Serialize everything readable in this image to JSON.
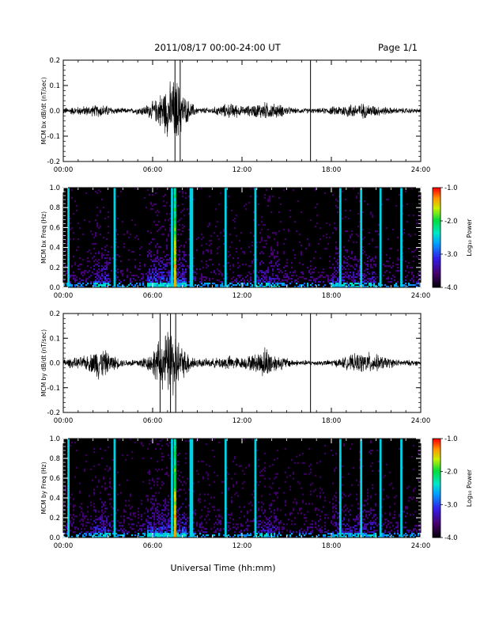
{
  "header": {
    "title": "2011/08/17  00:00-24:00 UT",
    "page": "Page 1/1"
  },
  "footer": {
    "xlabel": "Universal Time (hh:mm)"
  },
  "chart_data": [
    {
      "type": "line",
      "ylabel": "MCM bx dB/dt (nT/sec)",
      "xlim": [
        0,
        24
      ],
      "ylim": [
        -0.2,
        0.2
      ],
      "x_ticks": [
        "00:00",
        "06:00",
        "12:00",
        "18:00",
        "24:00"
      ],
      "y_ticks": [
        "-0.2",
        "-0.1",
        "0.0",
        "0.1",
        "0.2"
      ],
      "spikes_hours": [
        7.5,
        7.85,
        16.6
      ],
      "activity_envelope": [
        [
          0.0,
          0.015
        ],
        [
          1.0,
          0.02
        ],
        [
          2.0,
          0.025
        ],
        [
          2.6,
          0.03
        ],
        [
          3.5,
          0.015
        ],
        [
          4.5,
          0.01
        ],
        [
          5.5,
          0.025
        ],
        [
          6.2,
          0.05
        ],
        [
          6.6,
          0.09
        ],
        [
          7.2,
          0.13
        ],
        [
          7.6,
          0.15
        ],
        [
          8.2,
          0.06
        ],
        [
          9.0,
          0.015
        ],
        [
          10.0,
          0.015
        ],
        [
          10.8,
          0.03
        ],
        [
          11.5,
          0.035
        ],
        [
          12.0,
          0.02
        ],
        [
          12.5,
          0.025
        ],
        [
          13.5,
          0.04
        ],
        [
          14.5,
          0.03
        ],
        [
          15.5,
          0.012
        ],
        [
          16.5,
          0.012
        ],
        [
          17.0,
          0.01
        ],
        [
          18.0,
          0.018
        ],
        [
          19.0,
          0.03
        ],
        [
          20.0,
          0.035
        ],
        [
          21.0,
          0.025
        ],
        [
          22.0,
          0.015
        ],
        [
          23.0,
          0.012
        ],
        [
          24.0,
          0.01
        ]
      ]
    },
    {
      "type": "heatmap",
      "ylabel": "MCM bx Freq (Hz)",
      "xlim": [
        0,
        24
      ],
      "ylim": [
        0,
        1.0
      ],
      "x_ticks": [
        "00:00",
        "06:00",
        "12:00",
        "18:00",
        "24:00"
      ],
      "y_ticks": [
        "0.0",
        "0.2",
        "0.4",
        "0.6",
        "0.8",
        "1.0"
      ],
      "colorbar": {
        "label": "Log₁₀ Power",
        "range": [
          -4.0,
          -1.0
        ],
        "ticks": [
          "-1.0",
          "-2.0",
          "-3.0",
          "-4.0"
        ]
      },
      "stripes_hours": [
        0.35,
        3.45,
        7.3,
        8.55,
        8.65,
        10.9,
        12.9,
        18.6,
        20.0,
        21.3,
        22.7
      ],
      "strong_stripe_hour": 7.5
    },
    {
      "type": "line",
      "ylabel": "MCM by dB/dt (nT/sec)",
      "xlim": [
        0,
        24
      ],
      "ylim": [
        -0.2,
        0.2
      ],
      "x_ticks": [
        "00:00",
        "06:00",
        "12:00",
        "18:00",
        "24:00"
      ],
      "y_ticks": [
        "-0.2",
        "-0.1",
        "0.0",
        "0.1",
        "0.2"
      ],
      "spikes_hours": [
        6.5,
        7.2,
        7.55,
        16.6
      ],
      "activity_envelope": [
        [
          0.0,
          0.02
        ],
        [
          1.0,
          0.025
        ],
        [
          1.8,
          0.04
        ],
        [
          2.4,
          0.08
        ],
        [
          3.2,
          0.04
        ],
        [
          4.0,
          0.015
        ],
        [
          5.0,
          0.02
        ],
        [
          5.8,
          0.04
        ],
        [
          6.3,
          0.09
        ],
        [
          6.9,
          0.14
        ],
        [
          7.4,
          0.16
        ],
        [
          8.0,
          0.07
        ],
        [
          9.0,
          0.02
        ],
        [
          10.0,
          0.02
        ],
        [
          11.0,
          0.035
        ],
        [
          12.0,
          0.025
        ],
        [
          13.0,
          0.045
        ],
        [
          13.6,
          0.08
        ],
        [
          14.2,
          0.04
        ],
        [
          15.5,
          0.015
        ],
        [
          16.5,
          0.012
        ],
        [
          17.5,
          0.012
        ],
        [
          18.5,
          0.02
        ],
        [
          19.5,
          0.04
        ],
        [
          20.5,
          0.05
        ],
        [
          21.5,
          0.03
        ],
        [
          22.5,
          0.015
        ],
        [
          24.0,
          0.012
        ]
      ]
    },
    {
      "type": "heatmap",
      "ylabel": "MCM by Freq (Hz)",
      "xlim": [
        0,
        24
      ],
      "ylim": [
        0,
        1.0
      ],
      "x_ticks": [
        "00:00",
        "06:00",
        "12:00",
        "18:00",
        "24:00"
      ],
      "y_ticks": [
        "0.0",
        "0.2",
        "0.4",
        "0.6",
        "0.8",
        "1.0"
      ],
      "colorbar": {
        "label": "Log₁₀ Power",
        "range": [
          -4.0,
          -1.0
        ],
        "ticks": [
          "-1.0",
          "-2.0",
          "-3.0",
          "-4.0"
        ]
      },
      "stripes_hours": [
        0.35,
        3.45,
        7.3,
        8.55,
        8.65,
        10.9,
        12.9,
        18.6,
        20.0,
        21.3,
        22.7
      ],
      "strong_stripe_hour": 7.5
    }
  ]
}
